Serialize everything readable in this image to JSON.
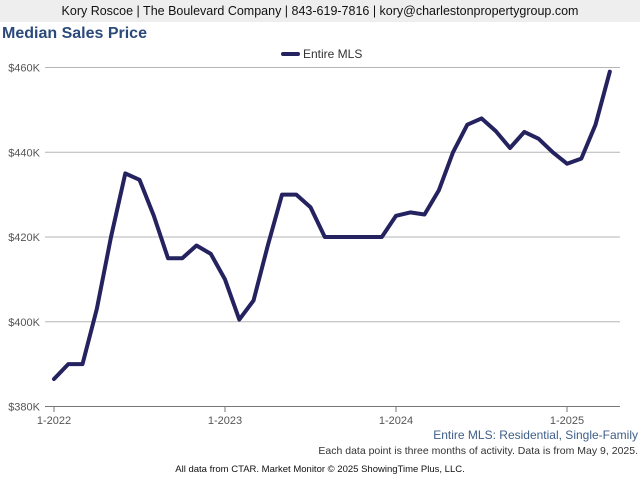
{
  "header": {
    "contact": "Kory Roscoe | The Boulevard Company | 843-619-7816 | kory@charlestonpropertygroup.com"
  },
  "chart_data": {
    "type": "line",
    "title": "Median Sales Price",
    "subtitle": "Entire MLS: Residential, Single-Family",
    "note": "Each data point is three months of activity. Data is from May 9, 2025.",
    "legend": {
      "position": "top-center"
    },
    "series": [
      {
        "name": "Entire MLS",
        "color": "#24225f",
        "x": [
          "2022-01",
          "2022-02",
          "2022-03",
          "2022-04",
          "2022-05",
          "2022-06",
          "2022-07",
          "2022-08",
          "2022-09",
          "2022-10",
          "2022-11",
          "2022-12",
          "2023-01",
          "2023-02",
          "2023-03",
          "2023-04",
          "2023-05",
          "2023-06",
          "2023-07",
          "2023-08",
          "2023-09",
          "2023-10",
          "2023-11",
          "2023-12",
          "2024-01",
          "2024-02",
          "2024-03",
          "2024-04",
          "2024-05",
          "2024-06",
          "2024-07",
          "2024-08",
          "2024-09",
          "2024-10",
          "2024-11",
          "2024-12",
          "2025-01",
          "2025-02",
          "2025-03",
          "2025-04"
        ],
        "values": [
          386500,
          390000,
          390000,
          403000,
          420000,
          435000,
          433500,
          425000,
          415000,
          415000,
          418000,
          416000,
          410000,
          400500,
          405000,
          418000,
          430000,
          430000,
          427000,
          420000,
          420000,
          420000,
          420000,
          420000,
          425000,
          425800,
          425300,
          431000,
          440000,
          446500,
          448000,
          445000,
          441000,
          444800,
          443200,
          440000,
          437300,
          438500,
          446500,
          459000
        ]
      }
    ],
    "x_ticks": [
      "1-2022",
      "1-2023",
      "1-2024",
      "1-2025"
    ],
    "y_ticks": [
      "$380K",
      "$400K",
      "$420K",
      "$440K",
      "$460K"
    ],
    "ylim": [
      380000,
      465000
    ],
    "grid": true
  },
  "footer": {
    "text": "All data from CTAR. Market Monitor © 2025 ShowingTime Plus, LLC."
  }
}
